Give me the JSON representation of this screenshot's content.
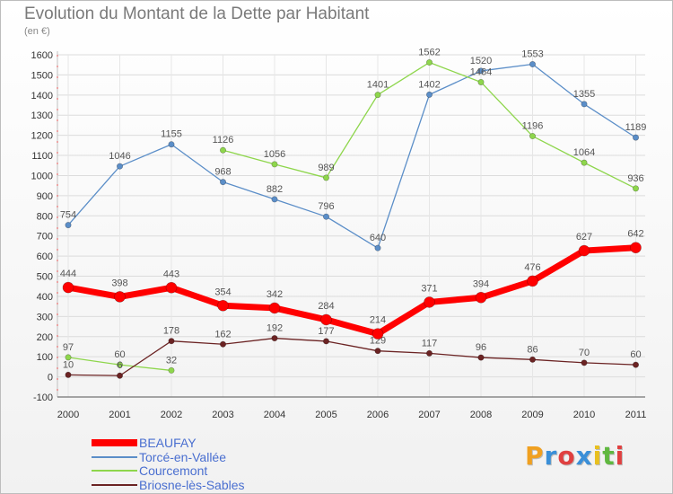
{
  "title": "Evolution du Montant de la Dette par Habitant",
  "subtitle": "(en €)",
  "logo": "Proxiti",
  "colors": {
    "BEAUFAY": "#ff0000",
    "Torcé-en-Vallée": "#5b8ec8",
    "Courcemont": "#8ed64c",
    "Briosne-lès-Sables": "#6b2323"
  },
  "chart_data": {
    "type": "line",
    "title": "Evolution du Montant de la Dette par Habitant",
    "ylabel": "(en €)",
    "xlabel": "",
    "x": [
      "2000",
      "2001",
      "2002",
      "2003",
      "2004",
      "2005",
      "2006",
      "2007",
      "2008",
      "2009",
      "2010",
      "2011"
    ],
    "ylim": [
      -100,
      1600
    ],
    "yticks": [
      -100,
      0,
      100,
      200,
      300,
      400,
      500,
      600,
      700,
      800,
      900,
      1000,
      1100,
      1200,
      1300,
      1400,
      1500,
      1600
    ],
    "grid": true,
    "legend_position": "bottom-left",
    "series": [
      {
        "name": "BEAUFAY",
        "values": [
          444,
          398,
          443,
          354,
          342,
          284,
          214,
          371,
          394,
          476,
          627,
          642
        ]
      },
      {
        "name": "Torcé-en-Vallée",
        "values": [
          754,
          1046,
          1155,
          968,
          882,
          796,
          640,
          1402,
          1520,
          1553,
          1355,
          1189
        ]
      },
      {
        "name": "Courcemont",
        "values": [
          97,
          60,
          32,
          1126,
          1056,
          989,
          1401,
          1562,
          1464,
          1196,
          1064,
          936
        ]
      },
      {
        "name": "Briosne-lès-Sables",
        "values": [
          10,
          6,
          178,
          162,
          192,
          177,
          129,
          117,
          96,
          86,
          70,
          60
        ]
      }
    ]
  }
}
